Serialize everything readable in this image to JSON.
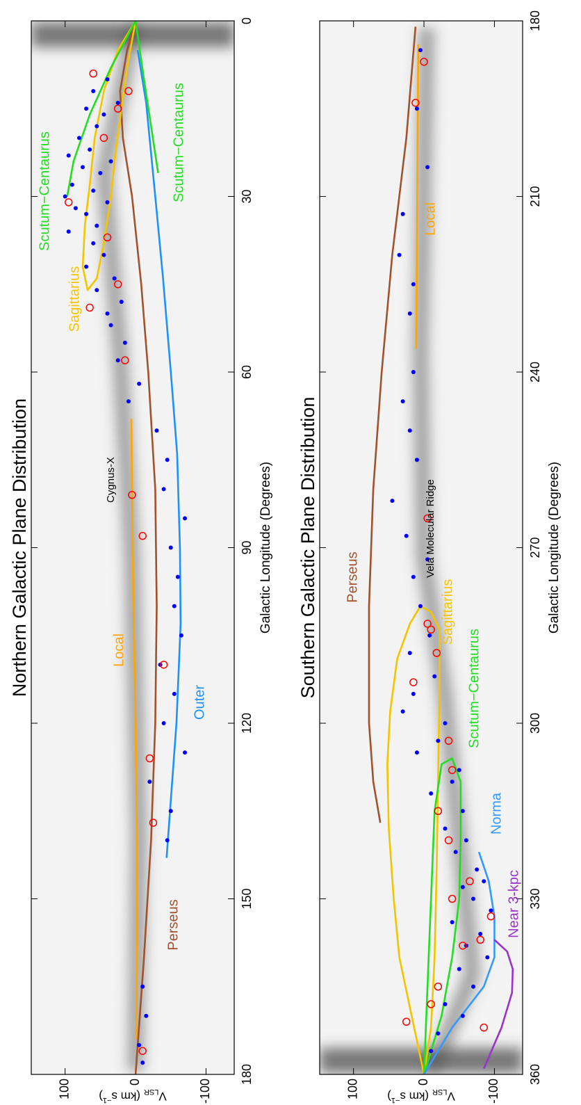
{
  "chart_data": [
    {
      "type": "line",
      "title": "Northern Galactic Plane Distribution",
      "xlabel": "Galactic Longitude (Degrees)",
      "ylabel": [
        "V",
        "LSR",
        "(km s",
        "−1",
        ")"
      ],
      "xlim": [
        180,
        0
      ],
      "xticks": [
        0,
        30,
        60,
        90,
        120,
        150,
        180
      ],
      "ylim": [
        -140,
        148
      ],
      "yticks": [
        -100,
        0,
        100
      ],
      "annotations": [
        "Cygnus-X"
      ],
      "series": [
        {
          "name": "Perseus",
          "color": "#a0522d",
          "x": [
            180,
            160,
            140,
            120,
            100,
            80,
            60,
            45,
            30,
            20,
            12,
            5,
            0
          ],
          "values": [
            0,
            -12,
            -22,
            -28,
            -30,
            -28,
            -18,
            -8,
            5,
            18,
            22,
            12,
            0
          ]
        },
        {
          "name": "Local",
          "color": "#ffa500",
          "x": [
            68,
            80,
            100,
            120,
            140,
            160,
            174
          ],
          "values": [
            6,
            5,
            3,
            0,
            -2,
            -2,
            -1
          ]
        },
        {
          "name": "Sagittarius",
          "color": "#f5c400",
          "x": [
            0,
            8,
            15,
            22,
            30,
            38,
            44,
            46,
            42,
            35,
            28,
            20,
            12,
            5,
            0
          ],
          "values": [
            0,
            12,
            20,
            28,
            35,
            45,
            55,
            68,
            75,
            72,
            65,
            58,
            45,
            25,
            0
          ]
        },
        {
          "name": "Outer",
          "color": "#1e90ff",
          "x": [
            5,
            14,
            30,
            44,
            60,
            74,
            90,
            103,
            120,
            143
          ],
          "values": [
            -3,
            -15,
            -28,
            -39,
            -50,
            -59,
            -63,
            -64,
            -58,
            -44
          ]
        },
        {
          "name": "Scutum−Centaurus",
          "color": "#22dd22",
          "x": [
            0,
            8,
            16,
            24,
            30,
            null,
            0,
            10,
            18,
            26
          ],
          "values": [
            0,
            35,
            65,
            88,
            97,
            null,
            0,
            -12,
            -22,
            -32
          ]
        }
      ],
      "points": {
        "color": "#0000ff",
        "x": [
          10,
          12,
          14,
          15,
          16,
          18,
          20,
          22,
          23,
          24,
          25,
          26,
          28,
          29,
          30,
          31,
          32,
          33,
          35,
          36,
          38,
          40,
          42,
          44,
          46,
          48,
          50,
          52,
          55,
          58,
          62,
          65,
          70,
          75,
          80,
          85,
          90,
          95,
          100,
          105,
          110,
          115,
          120,
          125,
          130,
          135,
          140,
          165,
          170,
          175,
          178
        ],
        "y": [
          40,
          60,
          25,
          70,
          45,
          55,
          80,
          65,
          95,
          35,
          75,
          50,
          90,
          60,
          100,
          40,
          85,
          70,
          55,
          95,
          60,
          45,
          70,
          30,
          55,
          20,
          40,
          35,
          15,
          25,
          -5,
          10,
          -30,
          -45,
          -40,
          -70,
          -50,
          -60,
          -55,
          -65,
          -35,
          -55,
          -40,
          -70,
          -20,
          -50,
          -45,
          -10,
          -15,
          -5,
          -10
        ]
      },
      "circles": {
        "color": "#ff0000",
        "x": [
          9,
          12,
          15,
          20,
          31,
          37,
          45,
          49,
          58,
          81,
          88,
          110,
          126,
          137,
          176
        ],
        "y": [
          60,
          10,
          25,
          45,
          95,
          40,
          25,
          65,
          15,
          5,
          -10,
          -40,
          -20,
          -25,
          -10
        ]
      }
    },
    {
      "type": "line",
      "title": "Southern Galactic Plane Distribution",
      "xlabel": "Galactic Longitude (Degrees)",
      "ylabel": [
        "V",
        "LSR",
        "(km s",
        "−1",
        ")"
      ],
      "xlim": [
        360,
        180
      ],
      "xticks": [
        180,
        210,
        240,
        270,
        300,
        330,
        360
      ],
      "ylim": [
        -140,
        148
      ],
      "yticks": [
        -100,
        0,
        100
      ],
      "annotations": [
        "Vela Molecular Ridge"
      ],
      "series": [
        {
          "name": "Perseus",
          "color": "#a0522d",
          "x": [
            181,
            200,
            220,
            240,
            260,
            280,
            300,
            310,
            317
          ],
          "values": [
            12,
            25,
            45,
            60,
            72,
            78,
            78,
            72,
            62
          ]
        },
        {
          "name": "Local",
          "color": "#ffa500",
          "x": [
            184,
            200,
            220,
            236
          ],
          "values": [
            8,
            9,
            10,
            11
          ]
        },
        {
          "name": "Sagittarius",
          "color": "#f5c400",
          "x": [
            360,
            352,
            340,
            330,
            318,
            307,
            298,
            289,
            283,
            280,
            281,
            284,
            295,
            310,
            325,
            340,
            352,
            360
          ],
          "values": [
            0,
            14,
            35,
            43,
            50,
            52,
            48,
            38,
            20,
            5,
            -10,
            -22,
            -22,
            -20,
            -18,
            -15,
            -10,
            0
          ]
        },
        {
          "name": "Scutum−Centaurus",
          "color": "#22dd22",
          "x": [
            360,
            345,
            330,
            315,
            307,
            306,
            310,
            320,
            330,
            340,
            350,
            360
          ],
          "values": [
            0,
            -5,
            -10,
            -15,
            -25,
            -40,
            -52,
            -52,
            -50,
            -40,
            -25,
            0
          ]
        },
        {
          "name": "Norma",
          "color": "#3399ff",
          "x": [
            360,
            352,
            345,
            340,
            333,
            327,
            322
          ],
          "values": [
            0,
            -40,
            -85,
            -100,
            -100,
            -92,
            -78
          ]
        },
        {
          "name": "Near 3-kpc",
          "color": "#9933cc",
          "x": [
            359,
            352,
            346,
            342,
            339,
            337
          ],
          "values": [
            -85,
            -110,
            -125,
            -126,
            -118,
            -100
          ]
        }
      ],
      "points": {
        "color": "#0000ff",
        "x": [
          185,
          195,
          205,
          213,
          220,
          225,
          230,
          240,
          245,
          250,
          255,
          262,
          268,
          272,
          275,
          280,
          285,
          288,
          292,
          295,
          298,
          300,
          303,
          305,
          308,
          310,
          312,
          315,
          318,
          320,
          322,
          325,
          327,
          328,
          330,
          332,
          334,
          336,
          338,
          340,
          342,
          345,
          348,
          350,
          353,
          356
        ],
        "y": [
          5,
          10,
          -5,
          30,
          35,
          15,
          20,
          15,
          30,
          20,
          10,
          45,
          25,
          -5,
          15,
          5,
          -8,
          20,
          -15,
          15,
          30,
          -30,
          -20,
          10,
          -50,
          -40,
          -10,
          -55,
          -30,
          -60,
          -45,
          -75,
          -85,
          -55,
          -70,
          -95,
          -40,
          -80,
          -60,
          -90,
          -50,
          -70,
          -30,
          -55,
          -20,
          -10
        ]
      },
      "circles": {
        "color": "#ff0000",
        "x": [
          187,
          194,
          265,
          283,
          284,
          288,
          293,
          303,
          308,
          315,
          320,
          327,
          330,
          333,
          337,
          338,
          345,
          348,
          351,
          352
        ],
        "y": [
          0,
          12,
          -5,
          -5,
          -10,
          -18,
          15,
          -35,
          -40,
          -20,
          -35,
          -65,
          -40,
          -95,
          -80,
          -55,
          -20,
          -10,
          25,
          -85
        ]
      }
    }
  ]
}
